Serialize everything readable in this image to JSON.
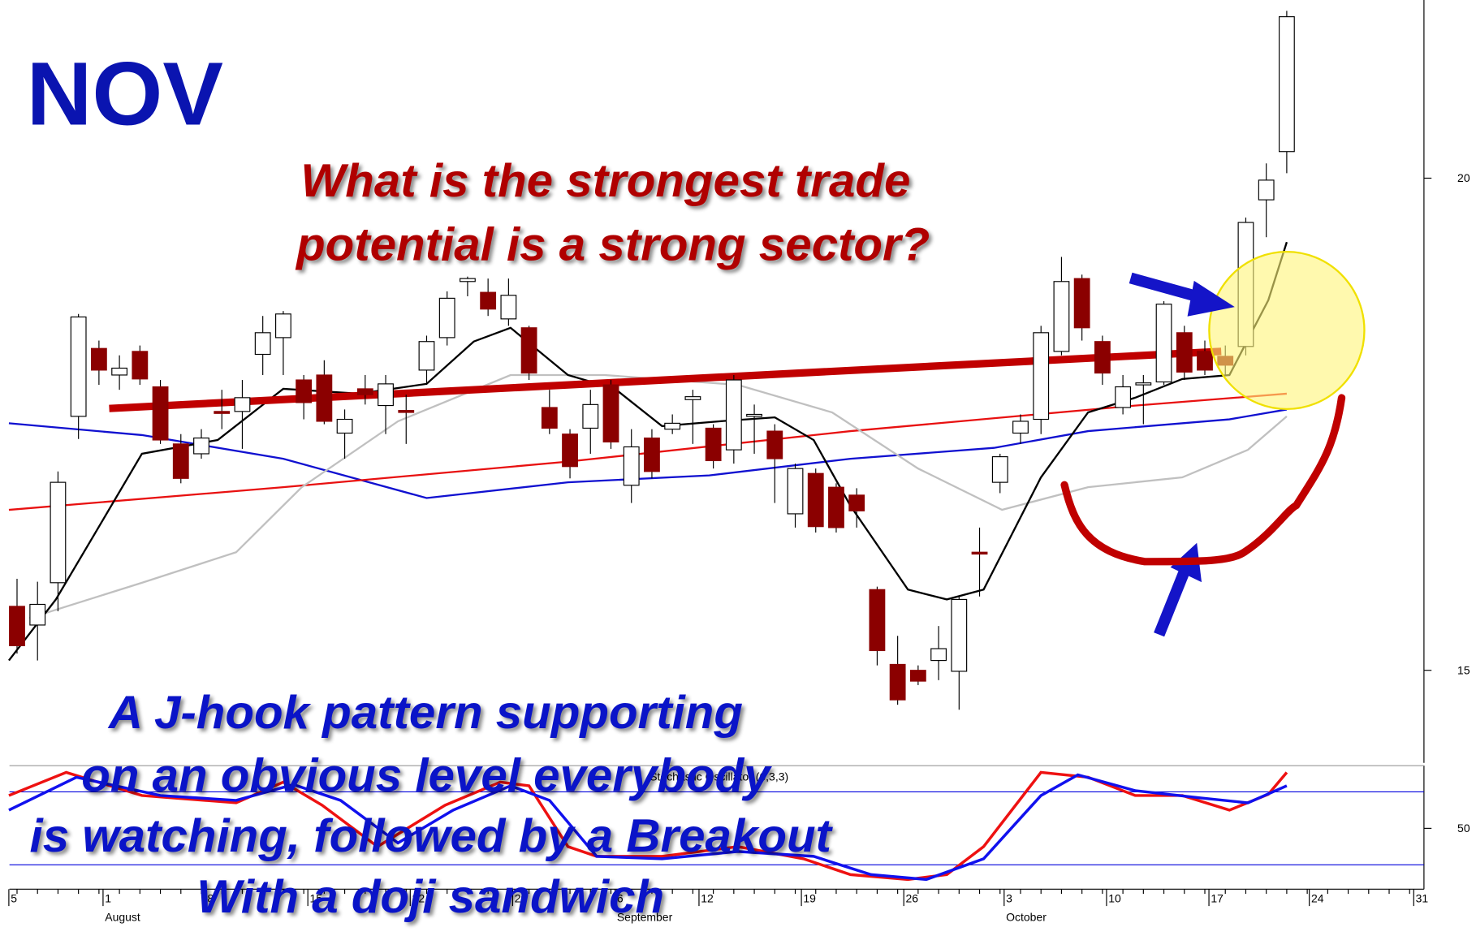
{
  "chart_data": [
    {
      "type": "candlestick",
      "title": "NOV",
      "annotations": [
        "What is the strongest trade",
        "potential is a strong sector?"
      ],
      "notes": [
        "A J-hook pattern supporting",
        "on an obvious level everybody",
        "is watching, followed by a Breakout",
        "With a doji sandwich"
      ],
      "up_color": "#ffffff",
      "down_color": "#8b0000",
      "open": [
        15.65,
        15.46,
        15.89,
        17.58,
        18.27,
        18.0,
        18.24,
        17.88,
        17.3,
        17.2,
        17.63,
        17.63,
        18.21,
        18.38,
        17.95,
        18.0,
        17.41,
        17.86,
        17.69,
        17.64,
        18.05,
        18.38,
        18.95,
        18.84,
        18.57,
        18.48,
        17.67,
        17.4,
        17.46,
        17.9,
        16.88,
        17.36,
        17.45,
        17.75,
        17.46,
        17.24,
        17.58,
        17.43,
        16.59,
        17.0,
        16.86,
        16.78,
        15.82,
        15.06,
        15.0,
        15.1,
        14.99,
        16.2,
        16.91,
        17.41,
        17.55,
        18.24,
        18.98,
        18.34,
        17.67,
        17.9,
        17.93,
        18.43,
        18.24,
        18.19,
        18.29,
        19.78,
        20.27
      ],
      "high": [
        15.93,
        15.9,
        17.02,
        18.62,
        18.35,
        18.2,
        18.3,
        17.95,
        17.4,
        17.45,
        17.85,
        17.95,
        18.6,
        18.65,
        18.0,
        18.15,
        17.65,
        18.0,
        18.0,
        17.8,
        18.4,
        18.85,
        19.0,
        18.98,
        18.98,
        18.5,
        17.85,
        17.45,
        17.85,
        17.95,
        17.45,
        17.45,
        17.6,
        17.85,
        17.5,
        18.0,
        17.7,
        17.5,
        17.1,
        17.05,
        16.9,
        16.85,
        15.85,
        15.35,
        15.05,
        15.45,
        15.75,
        16.45,
        17.2,
        17.6,
        18.5,
        19.2,
        19.02,
        18.4,
        18.0,
        18.0,
        18.75,
        18.5,
        18.35,
        18.3,
        19.6,
        20.15,
        21.7
      ],
      "low": [
        15.17,
        15.1,
        15.6,
        17.35,
        17.9,
        17.85,
        17.9,
        17.3,
        16.9,
        17.15,
        17.45,
        17.25,
        18.0,
        18.0,
        17.55,
        17.5,
        17.15,
        17.7,
        17.4,
        17.3,
        17.9,
        18.3,
        18.8,
        18.6,
        18.5,
        17.95,
        17.4,
        16.95,
        17.2,
        17.25,
        16.7,
        16.95,
        17.4,
        17.3,
        17.05,
        17.1,
        17.2,
        16.7,
        16.45,
        16.4,
        16.4,
        16.45,
        15.05,
        14.65,
        14.85,
        14.9,
        14.6,
        15.75,
        16.8,
        17.3,
        17.4,
        18.2,
        18.35,
        17.9,
        17.6,
        17.5,
        17.9,
        17.95,
        18.0,
        18.0,
        18.2,
        19.4,
        20.05
      ],
      "close": [
        15.25,
        15.67,
        16.91,
        18.59,
        18.05,
        18.07,
        17.96,
        17.34,
        16.95,
        17.36,
        17.61,
        17.77,
        18.43,
        18.62,
        17.72,
        17.53,
        17.55,
        17.8,
        17.91,
        17.62,
        18.34,
        18.78,
        18.98,
        18.67,
        18.81,
        18.02,
        17.46,
        17.07,
        17.7,
        17.32,
        17.27,
        17.02,
        17.51,
        17.78,
        17.13,
        17.95,
        17.6,
        17.15,
        17.05,
        16.46,
        16.45,
        16.62,
        15.2,
        14.7,
        14.89,
        15.22,
        15.72,
        16.19,
        17.17,
        17.53,
        18.43,
        18.95,
        18.48,
        18.02,
        17.88,
        17.92,
        18.72,
        18.03,
        18.05,
        18.1,
        19.55,
        19.98,
        21.64
      ],
      "series": [
        {
          "color": "#1010d0",
          "x": [
            -0.4,
            6.1,
            13,
            20,
            26.9,
            33.8,
            40.7,
            47.7,
            52.3,
            59.2,
            62
          ],
          "values": [
            17.51,
            17.39,
            17.15,
            16.75,
            16.91,
            16.98,
            17.15,
            17.26,
            17.43,
            17.55,
            17.65
          ]
        },
        {
          "color": "#e81010",
          "x": [
            -0.4,
            13,
            26.9,
            40.7,
            54.6,
            62
          ],
          "values": [
            16.63,
            16.86,
            17.12,
            17.43,
            17.69,
            17.81
          ]
        },
        {
          "color": "#c0c0c0",
          "x": [
            0.6,
            6.1,
            10.7,
            13.9,
            18.6,
            24.1,
            28.7,
            35.2,
            39.8,
            44,
            48.1,
            52.3,
            56.9,
            60.1,
            62
          ],
          "values": [
            15.53,
            15.89,
            16.2,
            16.86,
            17.53,
            18.0,
            18.0,
            17.9,
            17.62,
            17.05,
            16.63,
            16.86,
            16.96,
            17.24,
            17.58
          ]
        },
        {
          "color": "#000000",
          "x": [
            -0.4,
            1.9,
            3.8,
            6.1,
            9.8,
            13,
            16.7,
            20,
            22.3,
            24.1,
            26.9,
            29.2,
            31.5,
            34.3,
            37,
            38.9,
            40.7,
            43.5,
            45.4,
            47.2,
            50,
            52.3,
            54.6,
            56.9,
            59.2,
            61.1,
            62
          ],
          "values": [
            15.1,
            15.72,
            16.39,
            17.2,
            17.34,
            17.86,
            17.81,
            17.91,
            18.34,
            18.48,
            18.0,
            17.86,
            17.48,
            17.53,
            17.57,
            17.34,
            16.67,
            15.82,
            15.72,
            15.82,
            16.96,
            17.62,
            17.77,
            17.96,
            18.0,
            18.76,
            19.35
          ]
        }
      ],
      "trendline": {
        "color": "#c00000",
        "x": [
          4.5,
          58.8
        ],
        "values": [
          17.66,
          18.24
        ]
      },
      "xlim": [
        -0.37,
        68.7
      ],
      "ylim": [
        14.06,
        21.81
      ],
      "yticks": [
        15,
        20
      ],
      "xticks": [
        {
          "value": -0.4,
          "label": "5"
        },
        {
          "value": 4.2,
          "label": "1"
        },
        {
          "value": 9.2,
          "label": "8"
        },
        {
          "value": 14.2,
          "label": "15"
        },
        {
          "value": 19.2,
          "label": "22"
        },
        {
          "value": 24.2,
          "label": "29"
        },
        {
          "value": 29.2,
          "label": "6"
        },
        {
          "value": 33.3,
          "label": "12"
        },
        {
          "value": 38.3,
          "label": "19"
        },
        {
          "value": 43.3,
          "label": "26"
        },
        {
          "value": 48.2,
          "label": "3"
        },
        {
          "value": 53.2,
          "label": "10"
        },
        {
          "value": 58.2,
          "label": "17"
        },
        {
          "value": 63.1,
          "label": "24"
        },
        {
          "value": 68.2,
          "label": "31"
        }
      ],
      "month_ticks": [
        {
          "value": 4.2,
          "label": "August"
        },
        {
          "value": 29.2,
          "label": "September"
        },
        {
          "value": 48.2,
          "label": "October"
        }
      ]
    },
    {
      "type": "line",
      "title": "Stochastic Oscillator (6,3,3)",
      "series": [
        {
          "color": "#ee1111",
          "x": [
            -0.4,
            2.4,
            6.1,
            10.7,
            13,
            14.9,
            17.6,
            20.9,
            23.6,
            25,
            26.9,
            28.3,
            31.5,
            35.2,
            38.4,
            40.7,
            43.5,
            45.4,
            47.2,
            50,
            52.3,
            54.6,
            56.9,
            59.2,
            61.1,
            62
          ],
          "values": [
            77,
            96,
            77,
            71,
            88,
            69,
            35,
            69,
            88,
            85,
            35,
            27,
            27,
            35,
            25,
            12,
            8,
            12,
            35,
            96,
            92,
            77,
            77,
            65,
            78,
            96
          ]
        },
        {
          "color": "#1111ee",
          "x": [
            -0.4,
            2.9,
            7,
            10.7,
            13.5,
            15.8,
            18.6,
            21.3,
            24.1,
            26,
            28.3,
            31.5,
            35.2,
            38.9,
            41.7,
            44.4,
            47.2,
            50,
            51.8,
            54.6,
            57.8,
            60.1,
            62
          ],
          "values": [
            65,
            92,
            77,
            73,
            86,
            73,
            38,
            65,
            85,
            73,
            27,
            25,
            31,
            27,
            12,
            8,
            25,
            77,
            94,
            81,
            75,
            71,
            85
          ]
        }
      ],
      "levels": [
        20,
        80
      ],
      "level_color": "#0000dd",
      "xlim": [
        -0.37,
        68.7
      ],
      "ylim": [
        0,
        101.5
      ],
      "yticks": [
        50
      ]
    }
  ]
}
